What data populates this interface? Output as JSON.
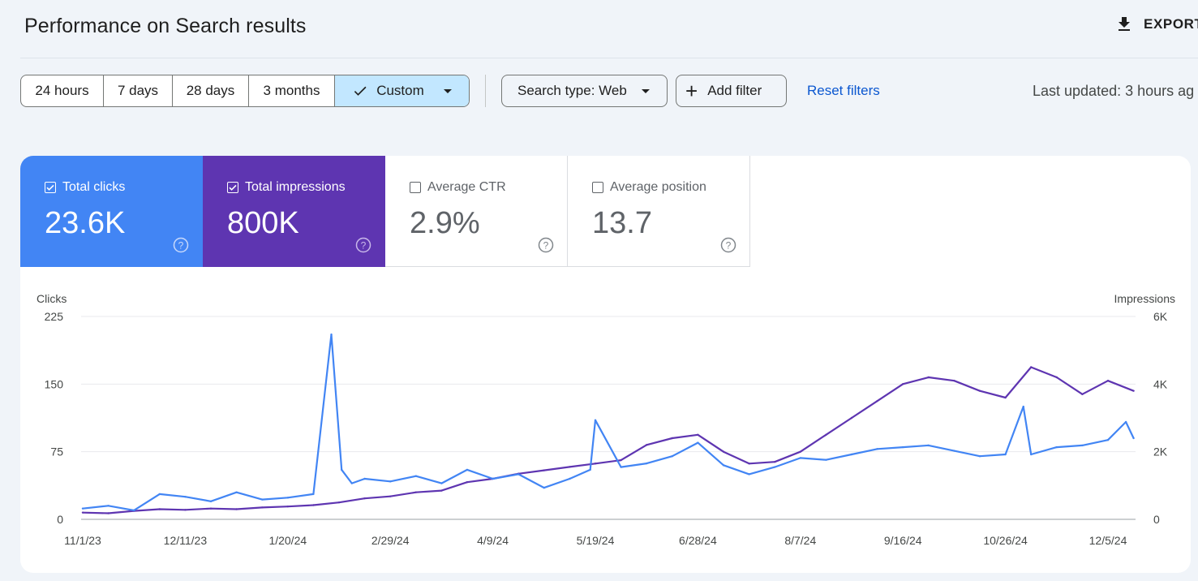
{
  "header": {
    "title": "Performance on Search results",
    "export_label": "EXPORT"
  },
  "filters": {
    "ranges": [
      "24 hours",
      "7 days",
      "28 days",
      "3 months",
      "Custom"
    ],
    "active_range": "Custom",
    "search_type": "Search type: Web",
    "add_filter": "Add filter",
    "reset": "Reset filters",
    "last_updated": "Last updated: 3 hours ag"
  },
  "metrics": [
    {
      "label": "Total clicks",
      "value": "23.6K",
      "checked": true
    },
    {
      "label": "Total impressions",
      "value": "800K",
      "checked": true
    },
    {
      "label": "Average CTR",
      "value": "2.9%",
      "checked": false
    },
    {
      "label": "Average position",
      "value": "13.7",
      "checked": false
    }
  ],
  "colors": {
    "clicks": "#4285f4",
    "impressions": "#5e35b1",
    "active_range_bg": "#c2e7ff",
    "link": "#0b57d0"
  },
  "chart_data": {
    "type": "line",
    "y_left_label": "Clicks",
    "y_right_label": "Impressions",
    "y_left_ticks": [
      "0",
      "75",
      "150",
      "225"
    ],
    "y_right_ticks": [
      "0",
      "2K",
      "4K",
      "6K"
    ],
    "ylim_left": [
      0,
      225
    ],
    "ylim_right": [
      0,
      6000
    ],
    "x_ticks": [
      "11/1/23",
      "12/11/23",
      "1/20/24",
      "2/29/24",
      "4/9/24",
      "5/19/24",
      "6/28/24",
      "8/7/24",
      "9/16/24",
      "10/26/24",
      "12/5/24"
    ],
    "grid": true,
    "series": [
      {
        "name": "Clicks",
        "axis": "left",
        "x": [
          "11/1/23",
          "11/11/23",
          "11/21/23",
          "12/1/23",
          "12/11/23",
          "12/21/23",
          "12/31/23",
          "1/10/24",
          "1/20/24",
          "1/30/24",
          "2/6/24",
          "2/10/24",
          "2/14/24",
          "2/19/24",
          "2/29/24",
          "3/10/24",
          "3/20/24",
          "3/30/24",
          "4/9/24",
          "4/19/24",
          "4/29/24",
          "5/9/24",
          "5/17/24",
          "5/19/24",
          "5/29/24",
          "6/8/24",
          "6/18/24",
          "6/28/24",
          "7/8/24",
          "7/18/24",
          "7/28/24",
          "8/7/24",
          "8/17/24",
          "8/27/24",
          "9/6/24",
          "9/16/24",
          "9/26/24",
          "10/6/24",
          "10/16/24",
          "10/26/24",
          "11/2/24",
          "11/5/24",
          "11/15/24",
          "11/25/24",
          "12/5/24",
          "12/12/24",
          "12/15/24"
        ],
        "values": [
          12,
          15,
          10,
          28,
          25,
          20,
          30,
          22,
          24,
          28,
          205,
          55,
          40,
          45,
          42,
          48,
          40,
          55,
          45,
          50,
          35,
          45,
          55,
          110,
          58,
          62,
          70,
          85,
          60,
          50,
          58,
          68,
          66,
          72,
          78,
          80,
          82,
          76,
          70,
          72,
          125,
          72,
          80,
          82,
          88,
          108,
          90
        ]
      },
      {
        "name": "Impressions",
        "axis": "right",
        "x": [
          "11/1/23",
          "11/11/23",
          "11/21/23",
          "12/1/23",
          "12/11/23",
          "12/21/23",
          "12/31/23",
          "1/10/24",
          "1/20/24",
          "1/30/24",
          "2/9/24",
          "2/19/24",
          "2/29/24",
          "3/10/24",
          "3/20/24",
          "3/30/24",
          "4/9/24",
          "4/19/24",
          "4/29/24",
          "5/9/24",
          "5/19/24",
          "5/29/24",
          "6/8/24",
          "6/18/24",
          "6/28/24",
          "7/8/24",
          "7/18/24",
          "7/28/24",
          "8/7/24",
          "8/17/24",
          "8/27/24",
          "9/6/24",
          "9/16/24",
          "9/26/24",
          "10/6/24",
          "10/16/24",
          "10/26/24",
          "11/5/24",
          "11/15/24",
          "11/25/24",
          "12/5/24",
          "12/15/24"
        ],
        "values": [
          200,
          180,
          250,
          300,
          280,
          320,
          300,
          350,
          380,
          420,
          500,
          620,
          680,
          800,
          850,
          1100,
          1200,
          1350,
          1450,
          1550,
          1650,
          1750,
          2200,
          2400,
          2500,
          2000,
          1650,
          1700,
          2000,
          2500,
          3000,
          3500,
          4000,
          4200,
          4100,
          3800,
          3600,
          4500,
          4200,
          3700,
          4100,
          3800
        ]
      }
    ]
  }
}
